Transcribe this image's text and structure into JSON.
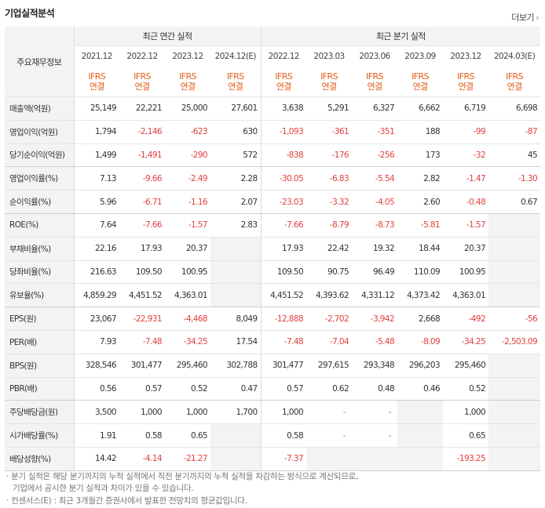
{
  "header": {
    "title": "기업실적분석",
    "more_label": "더보기",
    "more_arrow": "›"
  },
  "table": {
    "row_header_label": "주요재무정보",
    "groups": [
      "최근 연간 실적",
      "최근 분기 실적"
    ],
    "periods": [
      "2021.12",
      "2022.12",
      "2023.12",
      "2024.12(E)",
      "2022.12",
      "2023.03",
      "2023.06",
      "2023.09",
      "2023.12",
      "2024.03(E)"
    ],
    "ifrs_line1": "IFRS",
    "ifrs_line2": "연결",
    "rows": [
      {
        "label": "매출액(억원)",
        "values": [
          "25,149",
          "22,221",
          "25,000",
          "27,601",
          "3,638",
          "5,291",
          "6,327",
          "6,662",
          "6,719",
          "6,698"
        ]
      },
      {
        "label": "영업이익(억원)",
        "values": [
          "1,794",
          "-2,146",
          "-623",
          "630",
          "-1,093",
          "-361",
          "-351",
          "188",
          "-99",
          "-87"
        ]
      },
      {
        "label": "당기순이익(억원)",
        "values": [
          "1,499",
          "-1,491",
          "-290",
          "572",
          "-838",
          "-176",
          "-256",
          "173",
          "-32",
          "45"
        ]
      },
      {
        "label": "영업이익률(%)",
        "values": [
          "7.13",
          "-9.66",
          "-2.49",
          "2.28",
          "-30.05",
          "-6.83",
          "-5.54",
          "2.82",
          "-1.47",
          "-1.30"
        ]
      },
      {
        "label": "순이익률(%)",
        "values": [
          "5.96",
          "-6.71",
          "-1.16",
          "2.07",
          "-23.03",
          "-3.32",
          "-4.05",
          "2.60",
          "-0.48",
          "0.67"
        ]
      },
      {
        "label": "ROE(%)",
        "values": [
          "7.64",
          "-7.66",
          "-1.57",
          "2.83",
          "-7.66",
          "-8.79",
          "-8.73",
          "-5.81",
          "-1.57",
          ""
        ]
      },
      {
        "label": "부채비율(%)",
        "values": [
          "22.16",
          "17.93",
          "20.37",
          "",
          "17.93",
          "22.42",
          "19.32",
          "18.44",
          "20.37",
          ""
        ]
      },
      {
        "label": "당좌비율(%)",
        "values": [
          "216.63",
          "109.50",
          "100.95",
          "",
          "109.50",
          "90.75",
          "96.49",
          "110.09",
          "100.95",
          ""
        ]
      },
      {
        "label": "유보율(%)",
        "values": [
          "4,859.29",
          "4,451.52",
          "4,363.01",
          "",
          "4,451.52",
          "4,393.62",
          "4,331.12",
          "4,373.42",
          "4,363.01",
          ""
        ]
      },
      {
        "label": "EPS(원)",
        "values": [
          "23,067",
          "-22,931",
          "-4,468",
          "8,049",
          "-12,888",
          "-2,702",
          "-3,942",
          "2,668",
          "-492",
          "-56"
        ]
      },
      {
        "label": "PER(배)",
        "values": [
          "7.93",
          "-7.48",
          "-34.25",
          "17.54",
          "-7.48",
          "-7.04",
          "-5.48",
          "-8.09",
          "-34.25",
          "-2,503.09"
        ]
      },
      {
        "label": "BPS(원)",
        "values": [
          "328,546",
          "301,477",
          "295,460",
          "302,788",
          "301,477",
          "297,615",
          "293,348",
          "296,203",
          "295,460",
          ""
        ]
      },
      {
        "label": "PBR(배)",
        "values": [
          "0.56",
          "0.57",
          "0.52",
          "0.47",
          "0.57",
          "0.62",
          "0.48",
          "0.46",
          "0.52",
          ""
        ]
      },
      {
        "label": "주당배당금(원)",
        "values": [
          "3,500",
          "1,000",
          "1,000",
          "1,700",
          "1,000",
          "-",
          "-",
          "",
          "1,000",
          ""
        ]
      },
      {
        "label": "시가배당률(%)",
        "values": [
          "1.91",
          "0.58",
          "0.65",
          "",
          "0.58",
          "-",
          "-",
          "",
          "0.65",
          ""
        ]
      },
      {
        "label": "배당성향(%)",
        "values": [
          "14.42",
          "-4.14",
          "-21.27",
          "",
          "-7.37",
          "",
          "",
          "",
          "-193.25",
          ""
        ]
      }
    ]
  },
  "footnotes": {
    "line1": "· 분기 실적은 해당 분기까지의 누적 실적에서 직전 분기까지의 누적 실적을 차감하는 방식으로 계산되므로,",
    "line2": "기업에서 공시한 분기 실적과 차이가 있을 수 있습니다.",
    "line3": "· 컨센서스(E) : 최근 3개월간 증권사에서 발표한 전망치의 평균값입니다."
  },
  "colors": {
    "negative": "#e24040",
    "ifrs": "#e35e1b",
    "header_bg": "#f3f3f3"
  }
}
